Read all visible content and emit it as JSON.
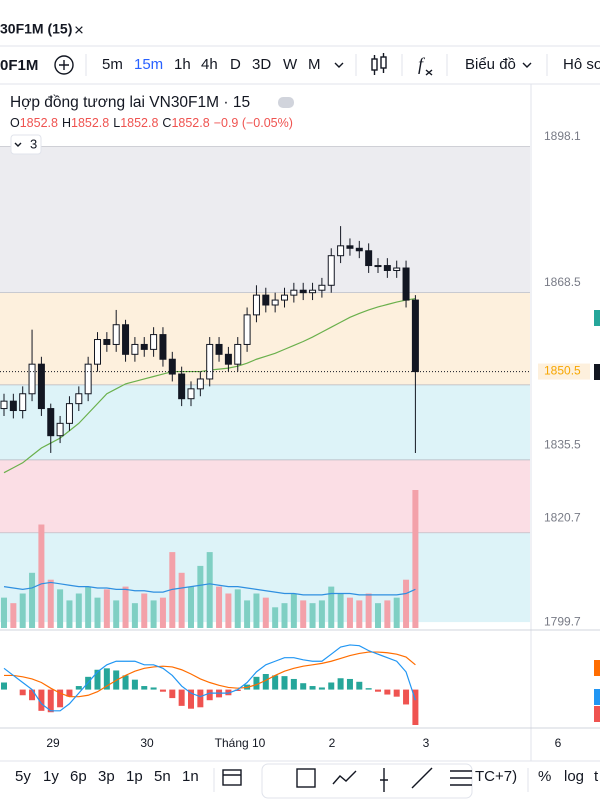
{
  "tab": {
    "title": "30F1M (15)",
    "close": "×"
  },
  "toolbar": {
    "symbol": "0F1M",
    "intervals": [
      "5m",
      "15m",
      "1h",
      "4h",
      "D",
      "3D",
      "W",
      "M"
    ],
    "chart_menu": "Biểu đồ",
    "cut_label": "Hô so"
  },
  "legend": {
    "title": "Hợp đồng tương lai VN30F1M · 15",
    "ohlc": [
      {
        "label": "O",
        "value": "1852.8"
      },
      {
        "label": "H",
        "value": "1852.8"
      },
      {
        "label": "L",
        "value": "1852.8"
      },
      {
        "label": "C",
        "value": "1852.8"
      }
    ],
    "change": "−0.9 (−0.05%)",
    "collapse": "3"
  },
  "chart_data": {
    "type": "candlestick",
    "open": [
      1843,
      1844.5,
      1842.6,
      1846,
      1852,
      1843,
      1837.5,
      1840,
      1844,
      1846,
      1852,
      1857,
      1856,
      1860,
      1854,
      1856,
      1855,
      1858,
      1853,
      1850,
      1845,
      1847,
      1849,
      1856,
      1854,
      1852,
      1856,
      1862,
      1866,
      1864,
      1865,
      1866,
      1867,
      1866.5,
      1867,
      1868,
      1874,
      1876,
      1875.5,
      1875,
      1872,
      1872,
      1871,
      1871.5,
      1865
    ],
    "high": [
      1846,
      1846,
      1847.5,
      1859,
      1853.5,
      1844,
      1841.5,
      1845.5,
      1847.5,
      1853.5,
      1858.5,
      1858.5,
      1863,
      1861,
      1857.5,
      1857.5,
      1859.5,
      1859.5,
      1854.5,
      1851.5,
      1848.5,
      1850.5,
      1857.5,
      1857.5,
      1855.5,
      1857.5,
      1863.5,
      1868,
      1867.5,
      1866.5,
      1867.5,
      1868.5,
      1868.5,
      1868.5,
      1869.5,
      1875.5,
      1880,
      1877.5,
      1877,
      1876.5,
      1873.5,
      1873.5,
      1873,
      1873,
      1866
    ],
    "low": [
      1841.5,
      1841,
      1841,
      1844.5,
      1841.5,
      1834,
      1836,
      1838.5,
      1842.5,
      1844.5,
      1850.5,
      1854.5,
      1854.5,
      1852.5,
      1852.5,
      1853.5,
      1853.5,
      1851.5,
      1848.5,
      1843.5,
      1843.5,
      1845.5,
      1847.5,
      1852.5,
      1850.5,
      1850.5,
      1854.5,
      1860.5,
      1862.5,
      1862.5,
      1863.5,
      1864.5,
      1865,
      1865,
      1865.5,
      1866.5,
      1872.5,
      1874,
      1873.5,
      1870.5,
      1870.5,
      1869.5,
      1869.5,
      1863.5,
      1834
    ],
    "close": [
      1844.5,
      1842.6,
      1846,
      1852,
      1843,
      1837.5,
      1840,
      1844,
      1846,
      1852,
      1857,
      1856,
      1860,
      1854,
      1856,
      1855,
      1858,
      1853,
      1850,
      1845,
      1847,
      1849,
      1856,
      1854,
      1852,
      1856,
      1862,
      1866,
      1864,
      1865,
      1866,
      1867,
      1866.5,
      1867,
      1868,
      1874,
      1876,
      1875.5,
      1875,
      1872,
      1872,
      1871,
      1871.5,
      1865,
      1850.5
    ],
    "up_color": "#ffffff",
    "down_color": "#131722",
    "ylim": [
      1798.5,
      1907.6
    ],
    "yticks": [
      1898.1,
      1868.5,
      1850.5,
      1835.5,
      1820.7,
      1799.7
    ],
    "zones": [
      {
        "from": 1866.5,
        "to": 1896.1,
        "color": "#ececf0"
      },
      {
        "from": 1847.8,
        "to": 1866.5,
        "color": "#fdf0dd"
      },
      {
        "from": 1832.6,
        "to": 1847.8,
        "color": "#ddf3f8"
      },
      {
        "from": 1817.8,
        "to": 1832.6,
        "color": "#fbdee5"
      },
      {
        "from": 1799.7,
        "to": 1817.8,
        "color": "#ddf3f8"
      }
    ],
    "ma": {
      "color": "#6ab04c",
      "values": [
        1830,
        1831,
        1832,
        1833.5,
        1835,
        1836,
        1837,
        1838.5,
        1840,
        1842,
        1844,
        1846,
        1847,
        1848,
        1848.5,
        1849,
        1849.5,
        1850,
        1850.5,
        1850.5,
        1850.5,
        1850.5,
        1850.8,
        1851,
        1851.2,
        1851.6,
        1852.2,
        1853,
        1853.6,
        1854.2,
        1855,
        1855.8,
        1856.6,
        1857.5,
        1858.5,
        1859.5,
        1860.5,
        1861.5,
        1862.3,
        1863,
        1863.6,
        1864.1,
        1864.6,
        1865,
        1865.3
      ]
    },
    "volume": {
      "ylim": [
        0,
        100
      ],
      "up_color": "#7fcfc3",
      "down_color": "#f3a1a9",
      "values": [
        22,
        18,
        25,
        40,
        75,
        35,
        28,
        20,
        25,
        30,
        22,
        28,
        20,
        30,
        18,
        25,
        20,
        22,
        55,
        40,
        30,
        45,
        55,
        30,
        25,
        28,
        20,
        25,
        22,
        15,
        18,
        25,
        20,
        18,
        20,
        30,
        25,
        22,
        20,
        25,
        18,
        20,
        22,
        35,
        100
      ],
      "ma_color": "#2f8fe0",
      "ma": [
        30,
        29,
        28,
        29,
        32,
        33,
        32,
        31,
        30,
        30,
        29,
        29,
        28,
        28,
        27,
        27,
        26,
        26,
        28,
        29,
        30,
        31,
        32,
        31,
        30,
        30,
        29,
        28,
        27,
        26,
        25,
        25,
        24,
        24,
        24,
        25,
        25,
        25,
        24,
        24,
        24,
        24,
        24,
        25,
        28
      ]
    },
    "macd": {
      "ylim": [
        -5,
        7
      ],
      "macd_color": "#2196f3",
      "signal_color": "#ff6d00",
      "pos_color": "#26a69a",
      "neg_color": "#ef5350",
      "macd": [
        3,
        2,
        1,
        0,
        -2,
        -3,
        -3,
        -2,
        -0.5,
        1,
        2.5,
        3.5,
        4,
        4,
        4,
        3.5,
        3.5,
        3,
        2,
        0.5,
        -0.5,
        -1,
        -0.5,
        -0.5,
        -0.5,
        0,
        1,
        2.5,
        3.5,
        4,
        4.5,
        4.5,
        4.2,
        4,
        4,
        5,
        6,
        6.3,
        6.2,
        5.5,
        5,
        4.5,
        4,
        2.5,
        -1.5
      ],
      "signal": [
        2,
        2,
        1.8,
        1.5,
        1,
        0.2,
        -0.5,
        -1,
        -1,
        -0.8,
        -0.3,
        0.5,
        1.3,
        2,
        2.6,
        3,
        3.2,
        3.3,
        3.2,
        2.8,
        2.2,
        1.5,
        1,
        0.6,
        0.3,
        0.2,
        0.3,
        0.7,
        1.3,
        2,
        2.6,
        3,
        3.3,
        3.5,
        3.7,
        4,
        4.4,
        4.8,
        5.1,
        5.3,
        5.3,
        5.2,
        5,
        4.6,
        3.5
      ],
      "histogram": [
        1,
        0,
        -0.8,
        -1.5,
        -3,
        -3.2,
        -2.5,
        -1,
        0.5,
        1.8,
        2.8,
        3,
        2.7,
        2,
        1.4,
        0.5,
        0.3,
        -0.3,
        -1.2,
        -2.3,
        -2.7,
        -2.5,
        -1.5,
        -1.1,
        -0.8,
        -0.2,
        0.7,
        1.8,
        2.2,
        2,
        1.9,
        1.5,
        0.9,
        0.5,
        0.3,
        1,
        1.6,
        1.5,
        1.1,
        0.2,
        -0.3,
        -0.7,
        -1,
        -2.1,
        -5
      ]
    },
    "x_labels": [
      "29",
      "30",
      "Tháng 10",
      "2",
      "3",
      "6"
    ]
  },
  "bottom_toolbar": {
    "ranges": [
      "5y",
      "1y",
      "6p",
      "3p",
      "1p",
      "5n",
      "1n"
    ],
    "timezone": "TC+7)",
    "percent": "%",
    "log": "log",
    "auto": "t"
  }
}
